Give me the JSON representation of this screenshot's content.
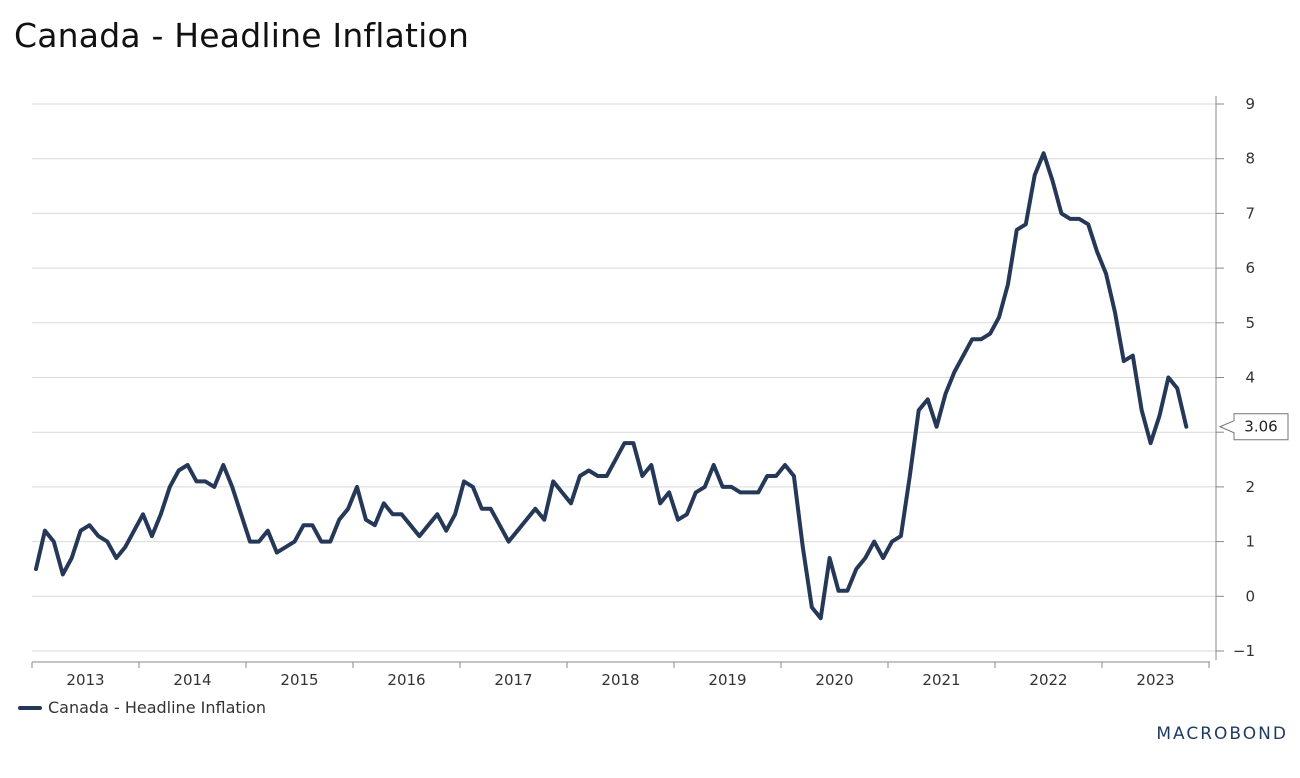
{
  "title": "Canada - Headline Inflation",
  "brand": "MACROBOND",
  "colors": {
    "series": "#253858",
    "grid": "#d9d9d9",
    "axis": "#888888"
  },
  "chart_data": {
    "type": "line",
    "title": "Canada - Headline Inflation",
    "xlabel": "",
    "ylabel": "",
    "ylim": [
      -1,
      9
    ],
    "yticks": [
      "9",
      "8",
      "7",
      "6",
      "5",
      "4",
      "3",
      "2",
      "1",
      "0",
      "-1"
    ],
    "xticks": [
      "2013",
      "2014",
      "2015",
      "2016",
      "2017",
      "2018",
      "2019",
      "2020",
      "2021",
      "2022",
      "2023"
    ],
    "grid": true,
    "legend_position": "bottom-left",
    "last_value_label": "3.06",
    "series": [
      {
        "name": "Canada - Headline Inflation",
        "start": "2013-01",
        "frequency": "monthly",
        "values": [
          0.5,
          1.2,
          1.0,
          0.4,
          0.7,
          1.2,
          1.3,
          1.1,
          1.0,
          0.7,
          0.9,
          1.2,
          1.5,
          1.1,
          1.5,
          2.0,
          2.3,
          2.4,
          2.1,
          2.1,
          2.0,
          2.4,
          2.0,
          1.5,
          1.0,
          1.0,
          1.2,
          0.8,
          0.9,
          1.0,
          1.3,
          1.3,
          1.0,
          1.0,
          1.4,
          1.6,
          2.0,
          1.4,
          1.3,
          1.7,
          1.5,
          1.5,
          1.3,
          1.1,
          1.3,
          1.5,
          1.2,
          1.5,
          2.1,
          2.0,
          1.6,
          1.6,
          1.3,
          1.0,
          1.2,
          1.4,
          1.6,
          1.4,
          2.1,
          1.9,
          1.7,
          2.2,
          2.3,
          2.2,
          2.2,
          2.5,
          2.8,
          2.8,
          2.2,
          2.4,
          1.7,
          1.9,
          1.4,
          1.5,
          1.9,
          2.0,
          2.4,
          2.0,
          2.0,
          1.9,
          1.9,
          1.9,
          2.2,
          2.2,
          2.4,
          2.2,
          0.9,
          -0.2,
          -0.4,
          0.7,
          0.1,
          0.1,
          0.5,
          0.7,
          1.0,
          0.7,
          1.0,
          1.1,
          2.2,
          3.4,
          3.6,
          3.1,
          3.7,
          4.1,
          4.4,
          4.7,
          4.7,
          4.8,
          5.1,
          5.7,
          6.7,
          6.8,
          7.7,
          8.1,
          7.6,
          7.0,
          6.9,
          6.9,
          6.8,
          6.3,
          5.9,
          5.2,
          4.3,
          4.4,
          3.4,
          2.8,
          3.3,
          4.0,
          3.8,
          3.1
        ]
      }
    ]
  }
}
